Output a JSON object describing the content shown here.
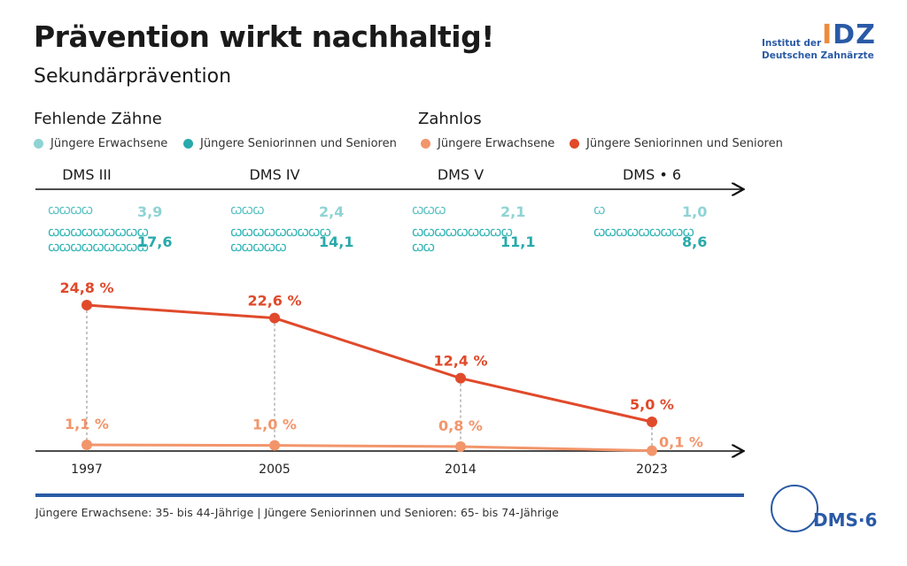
{
  "header": {
    "title": "Prävention wirkt nachhaltig!",
    "subtitle": "Sekundärprävention"
  },
  "logo": {
    "line1": "Institut der",
    "line2": "Deutschen Zahnärzte",
    "mark_left": "I",
    "mark_right": "DZ"
  },
  "sections": {
    "missing_teeth": "Fehlende Zähne",
    "edentulous": "Zahnlos"
  },
  "legend": {
    "missing_young": "Jüngere Erwachsene",
    "missing_senior": "Jüngere Seniorinnen und Senioren",
    "edentulous_young": "Jüngere Erwachsene",
    "edentulous_senior": "Jüngere Seniorinnen und Senioren"
  },
  "colors": {
    "young_missing": "#8fd3d5",
    "senior_missing": "#2aa9ab",
    "young_edentulous": "#f2956b",
    "senior_edentulous": "#e04a2b",
    "brand_blue": "#2a5aa6"
  },
  "studies": [
    {
      "name": "DMS III",
      "year": "1997",
      "teeth_young": "3,9",
      "teeth_senior": "17,6",
      "teeth_young_glyphs": "ꞷꞷꞷꞷ",
      "teeth_senior_glyphs": "ꞷꞷꞷꞷꞷꞷꞷꞷꞷ\nꞷꞷꞷꞷꞷꞷꞷꞷꞷ"
    },
    {
      "name": "DMS IV",
      "year": "2005",
      "teeth_young": "2,4",
      "teeth_senior": "14,1",
      "teeth_young_glyphs": "ꞷꞷꞷ",
      "teeth_senior_glyphs": "ꞷꞷꞷꞷꞷꞷꞷꞷꞷ\nꞷꞷꞷꞷꞷ"
    },
    {
      "name": "DMS V",
      "year": "2014",
      "teeth_young": "2,1",
      "teeth_senior": "11,1",
      "teeth_young_glyphs": "ꞷꞷꞷ",
      "teeth_senior_glyphs": "ꞷꞷꞷꞷꞷꞷꞷꞷꞷ\nꞷꞷ"
    },
    {
      "name": "DMS • 6",
      "year": "2023",
      "teeth_young": "1,0",
      "teeth_senior": "8,6",
      "teeth_young_glyphs": "ꞷ",
      "teeth_senior_glyphs": "ꞷꞷꞷꞷꞷꞷꞷꞷꞷ"
    }
  ],
  "chart_data": {
    "type": "line",
    "x": [
      "1997",
      "2005",
      "2014",
      "2023"
    ],
    "series": [
      {
        "name": "Jüngere Seniorinnen und Senioren",
        "values": [
          24.8,
          22.6,
          12.4,
          5.0
        ],
        "labels": [
          "24,8 %",
          "22,6 %",
          "12,4 %",
          "5,0 %"
        ]
      },
      {
        "name": "Jüngere Erwachsene",
        "values": [
          1.1,
          1.0,
          0.8,
          0.1
        ],
        "labels": [
          "1,1 %",
          "1,0 %",
          "0,8 %",
          "0,1 %"
        ]
      }
    ],
    "xlabel": "",
    "ylabel": "",
    "ylim": [
      0,
      25
    ]
  },
  "footer": {
    "note": "Jüngere Erwachsene: 35- bis 44-Jährige | Jüngere Seniorinnen und Senioren: 65- bis 74-Jährige",
    "dms6_logo": "DMS·6"
  }
}
